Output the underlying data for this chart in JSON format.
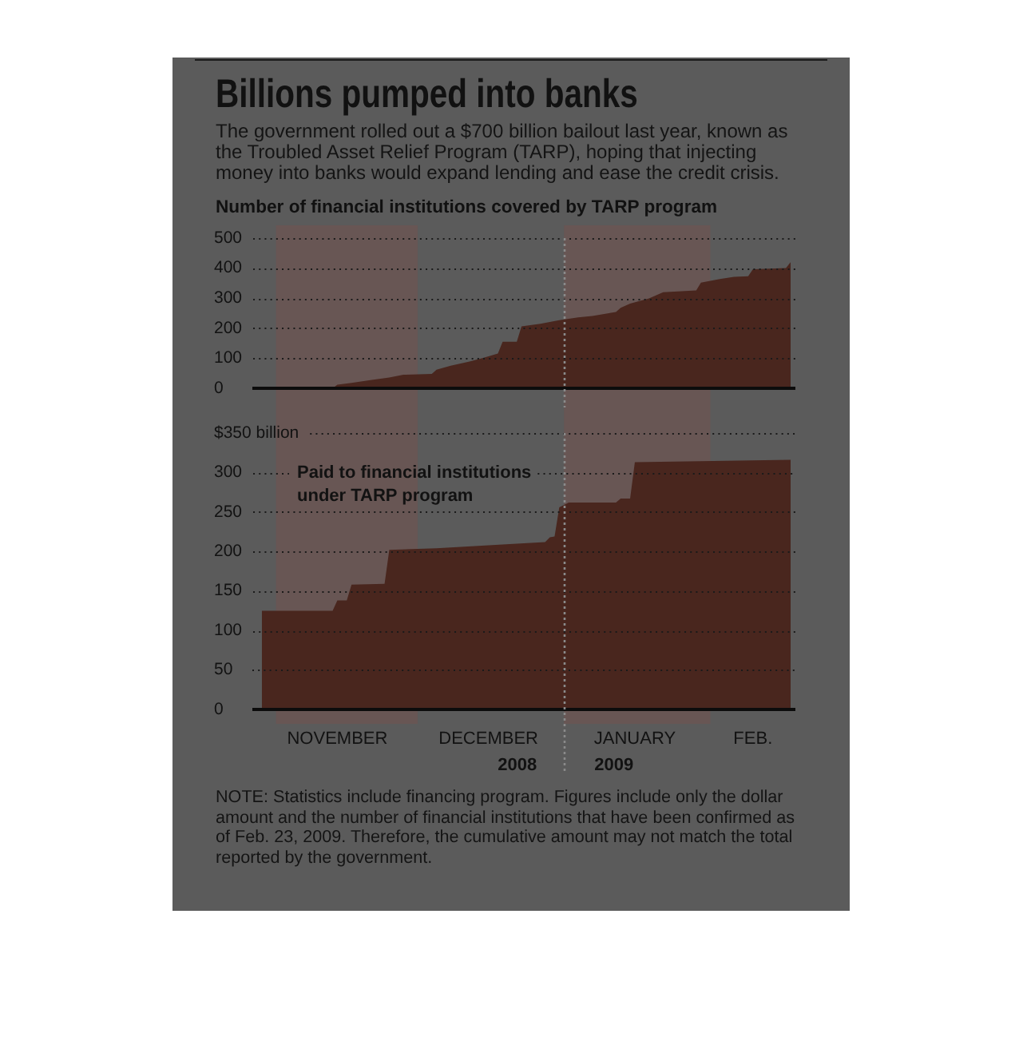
{
  "chart_data": [
    {
      "type": "area",
      "title": "Billions pumped into banks",
      "subtitle": "The government rolled out a $700 billion bailout last year, known as the Troubled Asset Relief Program (TARP), hoping that injecting money into banks would expand lending and ease the credit crisis.",
      "ylabel": "Number of financial institutions covered by TARP program",
      "x": [
        "2008-11-13",
        "2008-11-14",
        "2008-11-17",
        "2008-11-21",
        "2008-11-25",
        "2008-11-28",
        "2008-12-04",
        "2008-12-05",
        "2008-12-08",
        "2008-12-12",
        "2008-12-15",
        "2008-12-18",
        "2008-12-19",
        "2008-12-22",
        "2008-12-23",
        "2008-12-27",
        "2008-12-31",
        "2009-01-04",
        "2009-01-07",
        "2009-01-12",
        "2009-01-13",
        "2009-01-15",
        "2009-01-19",
        "2009-01-22",
        "2009-01-29",
        "2009-01-30",
        "2009-02-03",
        "2009-02-06",
        "2009-02-09",
        "2009-02-10",
        "2009-02-17",
        "2009-02-18"
      ],
      "values": [
        0,
        12,
        18,
        27,
        36,
        45,
        48,
        62,
        75,
        89,
        102,
        116,
        155,
        155,
        206,
        215,
        227,
        236,
        241,
        254,
        268,
        282,
        299,
        320,
        326,
        352,
        364,
        371,
        373,
        396,
        400,
        420
      ],
      "color": "#49261e",
      "xlim": [
        "2008-10-27",
        "2009-02-19"
      ],
      "ylim": [
        0,
        500
      ],
      "yticks": [
        0,
        100,
        200,
        300,
        400,
        500
      ],
      "grid": "y",
      "tick_labels": "y",
      "bands": [
        {
          "axis": "x",
          "from": "2008-11-01",
          "to": "2008-12-01",
          "color": "#685654"
        },
        {
          "axis": "x",
          "from": "2009-01-01",
          "to": "2009-02-01",
          "color": "#685654"
        }
      ],
      "ref_lines": [
        {
          "axis": "x",
          "value": "2009-01-01",
          "color": "#8a8a8a",
          "line_style": "dotted"
        }
      ]
    },
    {
      "type": "area",
      "ylabel": "Paid to financial institutions under TARP program",
      "x": [
        "2008-10-29",
        "2008-11-13",
        "2008-11-14",
        "2008-11-16",
        "2008-11-17",
        "2008-11-24",
        "2008-11-25",
        "2008-12-05",
        "2008-12-19",
        "2008-12-28",
        "2008-12-29",
        "2008-12-30",
        "2008-12-31",
        "2009-01-02",
        "2009-01-12",
        "2009-01-13",
        "2009-01-15",
        "2009-01-16",
        "2009-02-18"
      ],
      "values": [
        125,
        125,
        138,
        138,
        158,
        159,
        202,
        204,
        209,
        212,
        218,
        219,
        256,
        262,
        262,
        267,
        267,
        313,
        316
      ],
      "color": "#49261e",
      "xlim": [
        "2008-10-27",
        "2009-02-19"
      ],
      "xticks": [
        {
          "value": "2008-11-14",
          "label": "NOVEMBER"
        },
        {
          "value": "2008-12-16",
          "label": "DECEMBER"
        },
        {
          "value": "2009-01-16",
          "label": "JANUARY"
        },
        {
          "value": "2009-02-10",
          "label": "FEB."
        }
      ],
      "ylim": [
        0,
        350
      ],
      "yticks": [
        0,
        50,
        100,
        150,
        200,
        250,
        300,
        {
          "value": 350,
          "label": "$350 billion"
        }
      ],
      "grid": "y",
      "bands": [
        {
          "axis": "x",
          "from": "2008-11-01",
          "to": "2008-12-01",
          "color": "#685654"
        },
        {
          "axis": "x",
          "from": "2009-01-01",
          "to": "2009-02-01",
          "color": "#685654"
        }
      ],
      "ref_lines": [
        {
          "axis": "x",
          "value": "2009-01-01",
          "color": "#8a8a8a",
          "line_style": "dotted"
        }
      ],
      "annotations": [
        "2008",
        "2009",
        "NOTE: Statistics include financing program. Figures include only the dollar amount and the number of financial institutions that have been confirmed as of Feb. 23, 2009. Therefore, the cumulative amount may not match the total reported by the government."
      ]
    }
  ]
}
